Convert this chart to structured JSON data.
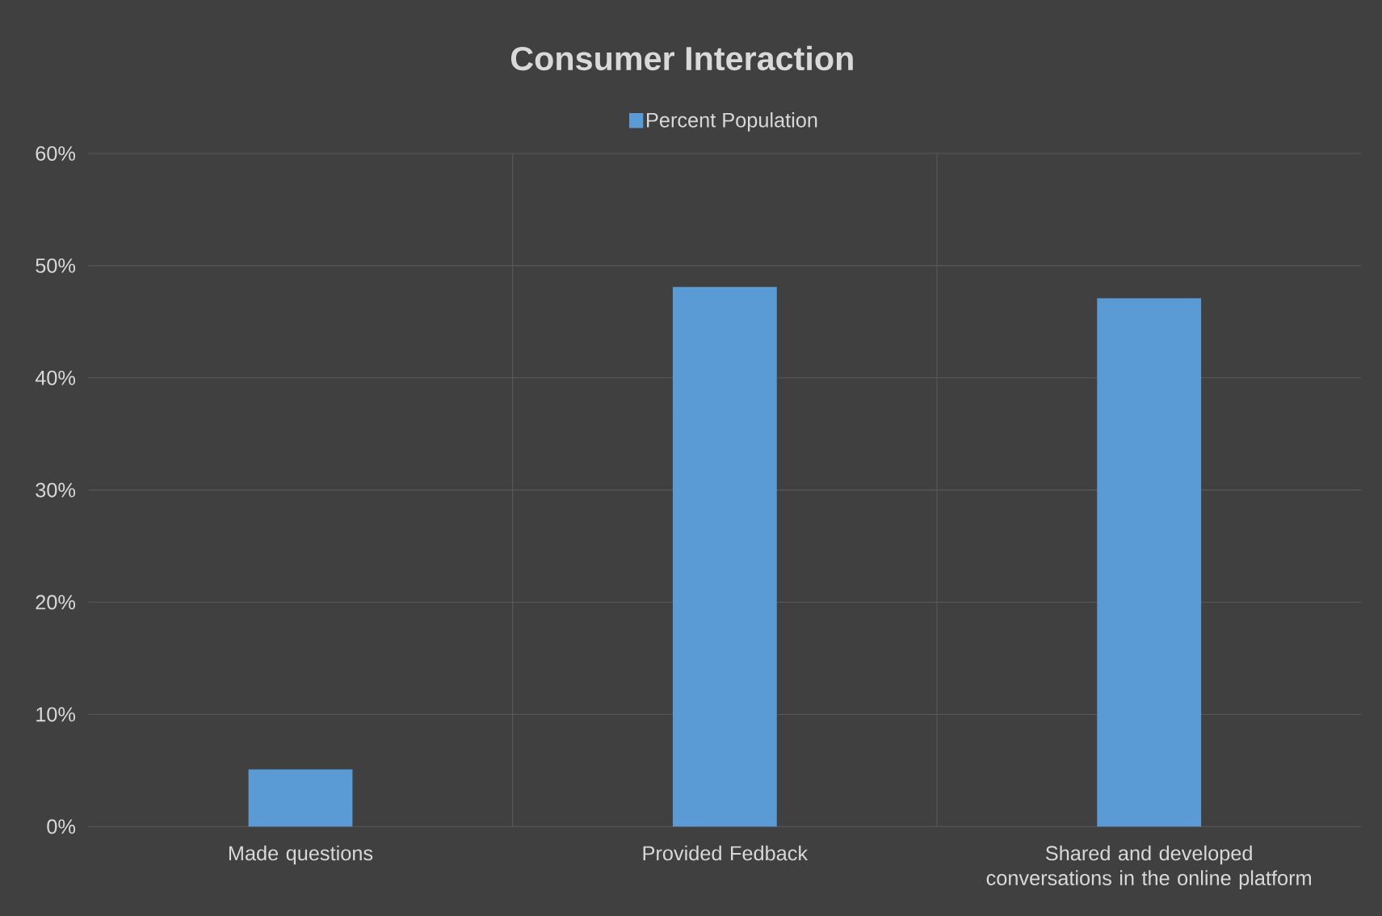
{
  "chart_data": {
    "type": "bar",
    "title": "Consumer Interaction",
    "categories": [
      "Made questions",
      "Provided Fedback",
      "Shared and developed conversations in the online platform"
    ],
    "series": [
      {
        "name": "Percent Population",
        "color": "#5b9bd5",
        "values": [
          5,
          48,
          47
        ]
      }
    ],
    "ylim": [
      0,
      60
    ],
    "yticks": [
      {
        "value": 0,
        "label": "0%"
      },
      {
        "value": 10,
        "label": "10%"
      },
      {
        "value": 20,
        "label": "20%"
      },
      {
        "value": 30,
        "label": "30%"
      },
      {
        "value": 40,
        "label": "40%"
      },
      {
        "value": 50,
        "label": "50%"
      },
      {
        "value": 60,
        "label": "60%"
      }
    ],
    "grid": true,
    "legend": "top"
  }
}
